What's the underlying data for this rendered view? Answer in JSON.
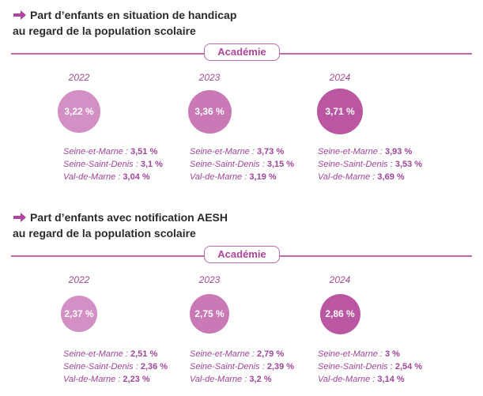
{
  "sections": [
    {
      "title_line1": "Part d’enfants en situation de handicap",
      "title_line2": "au regard de la population scolaire",
      "pill": "Académie",
      "years": [
        {
          "year": "2022",
          "value_label": "3,22 %",
          "value": 3.22,
          "details": [
            {
              "label": "Seine-et-Marne : ",
              "value": "3,51 %"
            },
            {
              "label": "Seine-Saint-Denis : ",
              "value": "3,1 %"
            },
            {
              "label": "Val-de-Marne : ",
              "value": "3,04 %"
            }
          ]
        },
        {
          "year": "2023",
          "value_label": "3,36 %",
          "value": 3.36,
          "details": [
            {
              "label": "Seine-et-Marne : ",
              "value": "3,73 %"
            },
            {
              "label": "Seine-Saint-Denis : ",
              "value": "3,15 %"
            },
            {
              "label": "Val-de-Marne : ",
              "value": "3,19 %"
            }
          ]
        },
        {
          "year": "2024",
          "value_label": "3,71 %",
          "value": 3.71,
          "details": [
            {
              "label": "Seine-et-Marne : ",
              "value": "3,93 %"
            },
            {
              "label": "Seine-Saint-Denis : ",
              "value": "3,53 %"
            },
            {
              "label": "Val-de-Marne : ",
              "value": "3,69 %"
            }
          ]
        }
      ]
    },
    {
      "title_line1": "Part d’enfants avec notification AESH",
      "title_line2": "au regard de la population scolaire",
      "pill": "Académie",
      "years": [
        {
          "year": "2022",
          "value_label": "2,37 %",
          "value": 2.37,
          "details": [
            {
              "label": "Seine-et-Marne : ",
              "value": "2,51 %"
            },
            {
              "label": "Seine-Saint-Denis : ",
              "value": "2,36 %"
            },
            {
              "label": "Val-de-Marne : ",
              "value": "2,23 %"
            }
          ]
        },
        {
          "year": "2023",
          "value_label": "2,75 %",
          "value": 2.75,
          "details": [
            {
              "label": "Seine-et-Marne : ",
              "value": "2,79 %"
            },
            {
              "label": "Seine-Saint-Denis : ",
              "value": "2,39 %"
            },
            {
              "label": "Val-de-Marne : ",
              "value": "3,2 %"
            }
          ]
        },
        {
          "year": "2024",
          "value_label": "2,86 %",
          "value": 2.86,
          "details": [
            {
              "label": "Seine-et-Marne : ",
              "value": "3 %"
            },
            {
              "label": "Seine-Saint-Denis : ",
              "value": "2,54 %"
            },
            {
              "label": "Val-de-Marne : ",
              "value": "3,14 %"
            }
          ]
        }
      ]
    }
  ],
  "colors": {
    "accent": "#b0479a",
    "rule": "#c06aa8",
    "circle_2022": "#d390c4",
    "circle_2023": "#c97ab6",
    "circle_2024": "#bb57a2",
    "arrow": "#b0479a"
  },
  "chart_data": [
    {
      "type": "bubble",
      "title": "Part d’enfants en situation de handicap au regard de la population scolaire",
      "categories": [
        "2022",
        "2023",
        "2024"
      ],
      "series": [
        {
          "name": "Académie",
          "values": [
            3.22,
            3.36,
            3.71
          ]
        },
        {
          "name": "Seine-et-Marne",
          "values": [
            3.51,
            3.73,
            3.93
          ]
        },
        {
          "name": "Seine-Saint-Denis",
          "values": [
            3.1,
            3.15,
            3.53
          ]
        },
        {
          "name": "Val-de-Marne",
          "values": [
            3.04,
            3.19,
            3.69
          ]
        }
      ],
      "unit": "%"
    },
    {
      "type": "bubble",
      "title": "Part d’enfants avec notification AESH au regard de la population scolaire",
      "categories": [
        "2022",
        "2023",
        "2024"
      ],
      "series": [
        {
          "name": "Académie",
          "values": [
            2.37,
            2.75,
            2.86
          ]
        },
        {
          "name": "Seine-et-Marne",
          "values": [
            2.51,
            2.79,
            3
          ]
        },
        {
          "name": "Seine-Saint-Denis",
          "values": [
            2.36,
            2.39,
            2.54
          ]
        },
        {
          "name": "Val-de-Marne",
          "values": [
            2.23,
            3.2,
            3.14
          ]
        }
      ],
      "unit": "%"
    }
  ]
}
